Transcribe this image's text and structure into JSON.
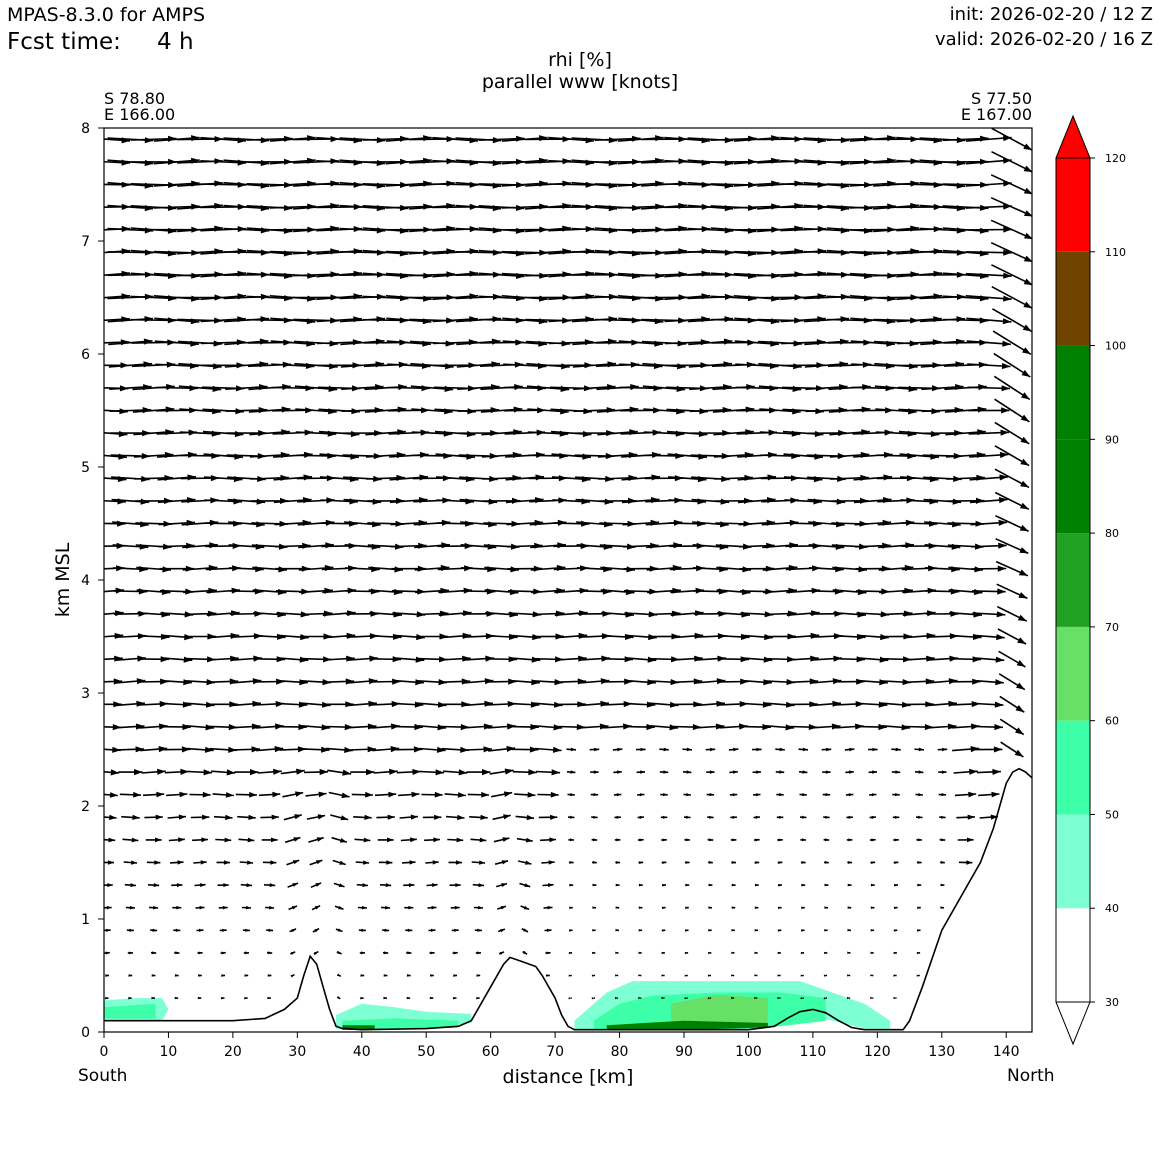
{
  "header": {
    "model_title": "MPAS-8.3.0 for AMPS",
    "fcst_label": "Fcst time:",
    "fcst_value": "4 h",
    "init": "init: 2026-02-20 / 12 Z",
    "valid": "valid: 2026-02-20 / 16 Z"
  },
  "endpoints": {
    "start_lat": "S 78.80",
    "start_lon": "E 166.00",
    "end_lat": "S 77.50",
    "end_lon": "E 167.00",
    "south": "South",
    "north": "North"
  },
  "chart_data": {
    "type": "heatmap",
    "title": "rhi [%]",
    "subtitle": "parallel www [knots]",
    "xlabel": "distance [km]",
    "ylabel": "km MSL",
    "xlim": [
      0,
      144
    ],
    "ylim": [
      0,
      8
    ],
    "xticks": [
      0,
      10,
      20,
      30,
      40,
      50,
      60,
      70,
      80,
      90,
      100,
      110,
      120,
      130,
      140
    ],
    "yticks": [
      0,
      1,
      2,
      3,
      4,
      5,
      6,
      7,
      8
    ],
    "grid": false,
    "colorbar": {
      "levels": [
        30,
        40,
        50,
        60,
        70,
        80,
        90,
        100,
        110,
        120
      ],
      "colors": [
        "#ffffff",
        "#7fffd4",
        "#3cffa8",
        "#66e066",
        "#22a022",
        "#008000",
        "#008000",
        "#704400",
        "#ff0000"
      ],
      "extend": "both",
      "extend_lower_color": "#ffffff",
      "extend_upper_color": "#ff0000"
    },
    "terrain": {
      "x": [
        0,
        10,
        20,
        25,
        28,
        30,
        31,
        32,
        33,
        34,
        35,
        36,
        37,
        40,
        50,
        55,
        57,
        58,
        60,
        62,
        63,
        65,
        67,
        68,
        70,
        71,
        72,
        73,
        74,
        80,
        100,
        104,
        106,
        108,
        110,
        112,
        114,
        116,
        118,
        120,
        122,
        124,
        125,
        127,
        130,
        133,
        136,
        138,
        140,
        141,
        142,
        143,
        144
      ],
      "y": [
        0.1,
        0.1,
        0.1,
        0.12,
        0.2,
        0.3,
        0.5,
        0.67,
        0.6,
        0.4,
        0.2,
        0.05,
        0.03,
        0.02,
        0.03,
        0.05,
        0.1,
        0.2,
        0.4,
        0.6,
        0.66,
        0.62,
        0.58,
        0.5,
        0.3,
        0.15,
        0.05,
        0.02,
        0.02,
        0.02,
        0.02,
        0.05,
        0.12,
        0.18,
        0.2,
        0.17,
        0.1,
        0.04,
        0.02,
        0.02,
        0.02,
        0.02,
        0.1,
        0.4,
        0.9,
        1.2,
        1.5,
        1.8,
        2.2,
        2.3,
        2.33,
        2.3,
        2.25
      ]
    },
    "rhi_regions": [
      {
        "level": 40,
        "x": [
          0,
          9,
          10,
          9,
          5,
          0
        ],
        "ymin": [
          0.1,
          0.1,
          0.2,
          0.3,
          0.3,
          0.28
        ]
      },
      {
        "level": 50,
        "x": [
          0,
          8,
          8,
          0
        ],
        "ymin": [
          0.12,
          0.12,
          0.25,
          0.22
        ]
      },
      {
        "level": 40,
        "x": [
          36,
          40,
          45,
          50,
          57,
          57,
          50,
          45,
          40,
          36
        ],
        "ymin": [
          0.03,
          0.02,
          0.02,
          0.03,
          0.08,
          0.16,
          0.18,
          0.22,
          0.25,
          0.15
        ]
      },
      {
        "level": 50,
        "x": [
          37,
          45,
          55,
          55,
          45,
          37
        ],
        "ymin": [
          0.02,
          0.02,
          0.04,
          0.1,
          0.12,
          0.1
        ]
      },
      {
        "level": 80,
        "x": [
          37,
          42,
          42,
          37
        ],
        "ymin": [
          0.02,
          0.02,
          0.06,
          0.06
        ]
      },
      {
        "level": 40,
        "x": [
          73,
          78,
          82,
          88,
          95,
          100,
          108,
          113,
          118,
          122,
          122,
          118,
          113,
          108,
          100,
          95,
          88,
          82,
          78,
          73
        ],
        "ymin": [
          0.02,
          0.02,
          0.02,
          0.02,
          0.02,
          0.02,
          0.18,
          0.1,
          0.03,
          0.02,
          0.1,
          0.25,
          0.35,
          0.45,
          0.45,
          0.45,
          0.45,
          0.45,
          0.35,
          0.1
        ]
      },
      {
        "level": 50,
        "x": [
          76,
          85,
          95,
          105,
          112,
          112,
          105,
          95,
          85,
          80,
          76
        ],
        "ymin": [
          0.02,
          0.02,
          0.02,
          0.05,
          0.1,
          0.3,
          0.35,
          0.35,
          0.32,
          0.25,
          0.1
        ]
      },
      {
        "level": 60,
        "x": [
          88,
          95,
          103,
          103,
          95,
          88
        ],
        "ymin": [
          0.05,
          0.05,
          0.08,
          0.3,
          0.33,
          0.25
        ]
      },
      {
        "level": 80,
        "x": [
          78,
          90,
          103,
          103,
          90,
          78
        ],
        "ymin": [
          0.02,
          0.02,
          0.04,
          0.08,
          0.1,
          0.06
        ]
      }
    ]
  }
}
